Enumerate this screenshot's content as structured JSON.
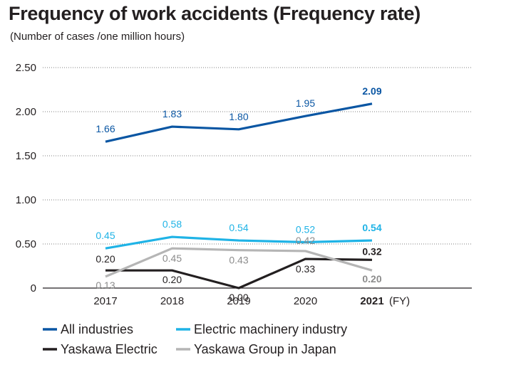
{
  "chart_data": {
    "type": "line",
    "title": "Frequency of work accidents (Frequency rate)",
    "subtitle": "(Number of cases /one million hours)",
    "x_unit": "(FY)",
    "categories": [
      "2017",
      "2018",
      "2019",
      "2020",
      "2021"
    ],
    "y_ticks": [
      "2.50",
      "2.00",
      "1.50",
      "1.00",
      "0.50",
      "0"
    ],
    "ylim": [
      0,
      2.5
    ],
    "grid": "dotted horizontal",
    "legend_position": "bottom",
    "series": [
      {
        "name": "All industries",
        "color": "#0a56a3",
        "values": [
          1.66,
          1.83,
          1.8,
          1.95,
          2.09
        ],
        "labels": [
          "1.66",
          "1.83",
          "1.80",
          "1.95",
          "2.09"
        ]
      },
      {
        "name": "Electric machinery industry",
        "color": "#1fb3e6",
        "values": [
          0.45,
          0.58,
          0.54,
          0.52,
          0.54
        ],
        "labels": [
          "0.45",
          "0.58",
          "0.54",
          "0.52",
          "0.54"
        ]
      },
      {
        "name": "Yaskawa Electric",
        "color": "#231f20",
        "values": [
          0.2,
          0.2,
          0.0,
          0.33,
          0.32
        ],
        "labels": [
          "0.20",
          "0.20",
          "0.00",
          "0.33",
          "0.32"
        ]
      },
      {
        "name": "Yaskawa Group in Japan",
        "color": "#b5b5b5",
        "label_color": "#8c8c8c",
        "values": [
          0.13,
          0.45,
          0.43,
          0.42,
          0.2
        ],
        "labels": [
          "0.13",
          "0.45",
          "0.43",
          "0.42",
          "0.20"
        ]
      }
    ]
  }
}
